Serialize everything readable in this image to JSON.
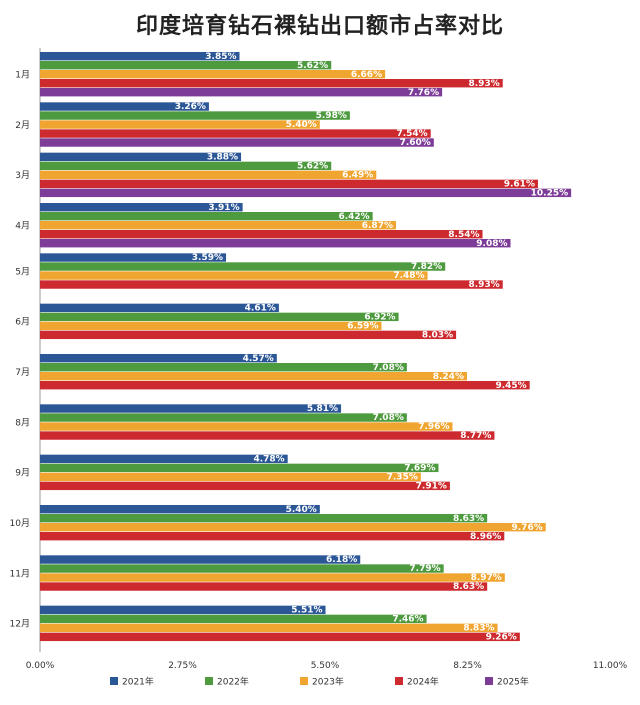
{
  "chart_data": {
    "type": "bar",
    "orientation": "horizontal",
    "title": "印度培育钻石裸钻出口额市占率对比",
    "categories": [
      "1月",
      "2月",
      "3月",
      "4月",
      "5月",
      "6月",
      "7月",
      "8月",
      "9月",
      "10月",
      "11月",
      "12月"
    ],
    "xlim": [
      0,
      11
    ],
    "x_ticks": [
      "0.00%",
      "2.75%",
      "5.50%",
      "8.25%",
      "11.00%"
    ],
    "grid": false,
    "legend_position": "bottom",
    "series": [
      {
        "name": "2021年",
        "color": "#2b5797",
        "values": [
          3.85,
          3.26,
          3.88,
          3.91,
          3.59,
          4.61,
          4.57,
          5.81,
          4.78,
          5.4,
          6.18,
          5.51
        ],
        "labels": [
          "3.85%",
          "3.26%",
          "3.88%",
          "3.91%",
          "3.59%",
          "4.61%",
          "4.57%",
          "5.81%",
          "4.78%",
          "5.40%",
          "6.18%",
          "5.51%"
        ]
      },
      {
        "name": "2022年",
        "color": "#4e9a3f",
        "values": [
          5.62,
          5.98,
          5.62,
          6.42,
          7.82,
          6.92,
          7.08,
          7.08,
          7.69,
          8.63,
          7.79,
          7.46
        ],
        "labels": [
          "5.62%",
          "5.98%",
          "5.62%",
          "6.42%",
          "7.82%",
          "6.92%",
          "7.08%",
          "7.08%",
          "7.69%",
          "8.63%",
          "7.79%",
          "7.46%"
        ]
      },
      {
        "name": "2023年",
        "color": "#f0a530",
        "values": [
          6.66,
          5.4,
          6.49,
          6.87,
          7.48,
          6.59,
          8.24,
          7.96,
          7.35,
          9.76,
          8.97,
          8.83
        ],
        "labels": [
          "6.66%",
          "5.40%",
          "6.49%",
          "6.87%",
          "7.48%",
          "6.59%",
          "8.24%",
          "7.96%",
          "7.35%",
          "9.76%",
          "8.97%",
          "8.83%"
        ]
      },
      {
        "name": "2024年",
        "color": "#cc2a2e",
        "values": [
          8.93,
          7.54,
          9.61,
          8.54,
          8.93,
          8.03,
          9.45,
          8.77,
          7.91,
          8.96,
          8.63,
          9.26
        ],
        "labels": [
          "8.93%",
          "7.54%",
          "9.61%",
          "8.54%",
          "8.93%",
          "8.03%",
          "9.45%",
          "8.77%",
          "7.91%",
          "8.96%",
          "8.63%",
          "9.26%"
        ]
      },
      {
        "name": "2025年",
        "color": "#7d3c98",
        "values": [
          7.76,
          7.6,
          10.25,
          9.08,
          null,
          null,
          null,
          null,
          null,
          null,
          null,
          null
        ],
        "labels": [
          "7.76%",
          "7.60%",
          "10.25%",
          "9.08%",
          null,
          null,
          null,
          null,
          null,
          null,
          null,
          null
        ]
      }
    ]
  }
}
